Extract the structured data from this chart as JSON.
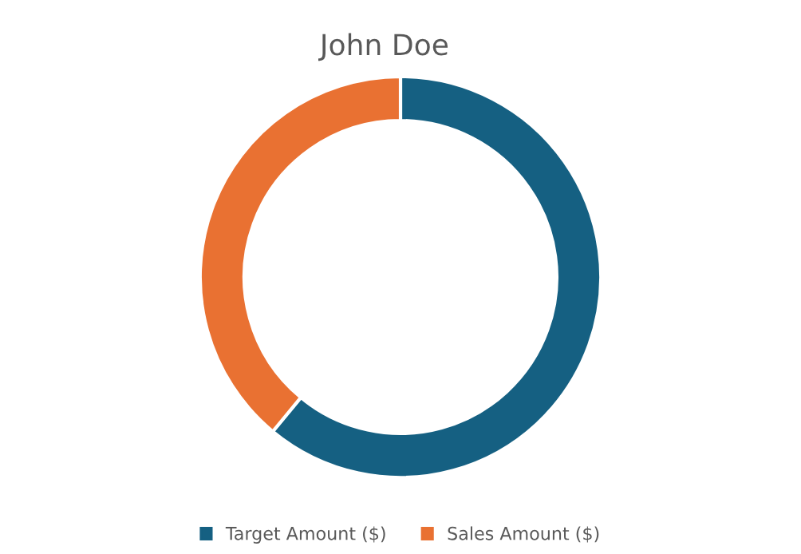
{
  "chart_data": {
    "type": "donut",
    "title": "John Doe",
    "categories": [
      "Target Amount ($)",
      "Sales Amount ($)"
    ],
    "values": [
      61,
      39
    ],
    "colors": [
      "#156082",
      "#e97132"
    ],
    "legend": "bottom"
  }
}
